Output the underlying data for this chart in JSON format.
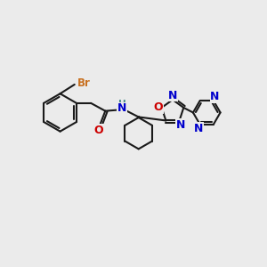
{
  "background_color": "#EBEBEB",
  "bond_color": "#1a1a1a",
  "bond_width": 1.5,
  "atom_colors": {
    "Br": "#c87020",
    "O": "#cc0000",
    "N": "#0000cc",
    "H": "#4a8a8a",
    "C": "#1a1a1a"
  },
  "font_size_atom": 8.5,
  "fig_bg": "#EBEBEB"
}
